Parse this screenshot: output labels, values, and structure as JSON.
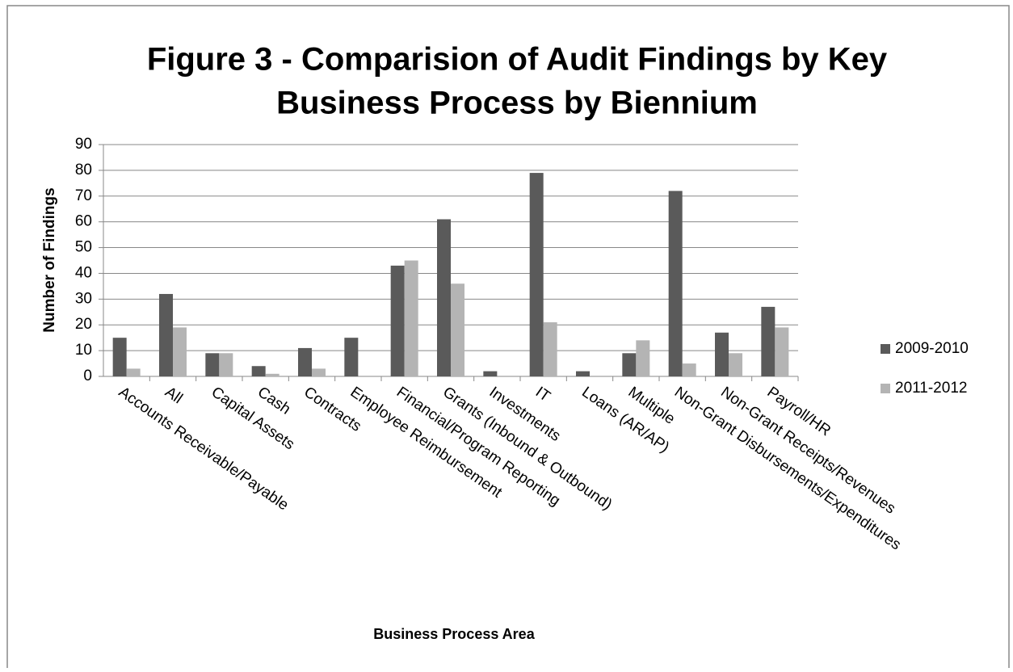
{
  "chart_data": {
    "type": "bar",
    "title": [
      "Figure 3 - Comparision of Audit Findings by Key",
      "Business Process by Biennium"
    ],
    "x_label": "Business Process Area",
    "y_label": "Number of Findings",
    "categories": [
      "Accounts Receivable/Payable",
      "All",
      "Capital Assets",
      "Cash",
      "Contracts",
      "Employee Reimbursement",
      "Financial/Program Reporting",
      "Grants (Inbound & Outbound)",
      "Investments",
      "IT",
      "Loans (AR/AP)",
      "Multiple",
      "Non-Grant Disbursements/Expenditures",
      "Non-Grant Receipts/Revenues",
      "Payroll/HR"
    ],
    "series": [
      {
        "name": "2009-2010",
        "color": "#5a5a5a",
        "values": [
          15,
          32,
          9,
          4,
          11,
          15,
          43,
          61,
          2,
          79,
          2,
          9,
          72,
          17,
          27
        ]
      },
      {
        "name": "2011-2012",
        "color": "#b4b4b4",
        "values": [
          3,
          19,
          9,
          1,
          3,
          0,
          45,
          36,
          0,
          21,
          0,
          14,
          5,
          9,
          19
        ]
      }
    ],
    "ylim": [
      0,
      90
    ],
    "yticks": [
      0,
      10,
      20,
      30,
      40,
      50,
      60,
      70,
      80,
      90
    ],
    "grid": true,
    "legend": "right"
  }
}
